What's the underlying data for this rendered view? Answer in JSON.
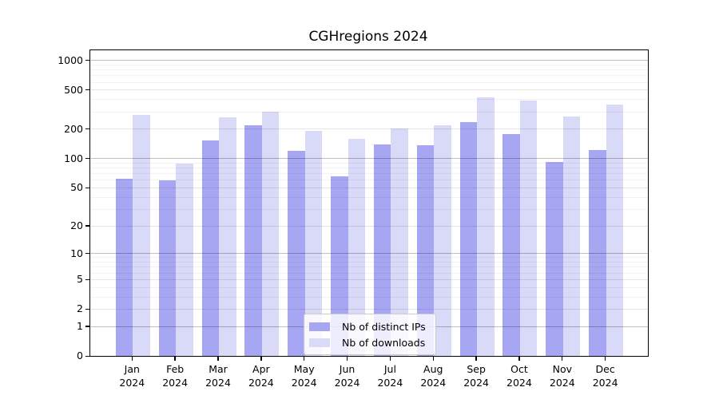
{
  "chart_data": {
    "type": "bar",
    "title": "CGHregions 2024",
    "x_categories": [
      {
        "month": "Jan",
        "year": "2024"
      },
      {
        "month": "Feb",
        "year": "2024"
      },
      {
        "month": "Mar",
        "year": "2024"
      },
      {
        "month": "Apr",
        "year": "2024"
      },
      {
        "month": "May",
        "year": "2024"
      },
      {
        "month": "Jun",
        "year": "2024"
      },
      {
        "month": "Jul",
        "year": "2024"
      },
      {
        "month": "Aug",
        "year": "2024"
      },
      {
        "month": "Sep",
        "year": "2024"
      },
      {
        "month": "Oct",
        "year": "2024"
      },
      {
        "month": "Nov",
        "year": "2024"
      },
      {
        "month": "Dec",
        "year": "2024"
      }
    ],
    "series": [
      {
        "name": "Nb of distinct IPs",
        "color": "#a6a6f2",
        "values": [
          61,
          59,
          152,
          218,
          119,
          65,
          138,
          137,
          233,
          178,
          92,
          121
        ]
      },
      {
        "name": "Nb of downloads",
        "color": "#d9d9f8",
        "values": [
          275,
          88,
          260,
          300,
          192,
          158,
          200,
          215,
          415,
          385,
          268,
          350
        ]
      }
    ],
    "y_axis": {
      "scale": "log1p",
      "tick_values": [
        0,
        1,
        2,
        5,
        10,
        20,
        50,
        100,
        200,
        500,
        1000
      ],
      "range_top": 1290
    },
    "grid": true,
    "legend_position": "lower center"
  }
}
